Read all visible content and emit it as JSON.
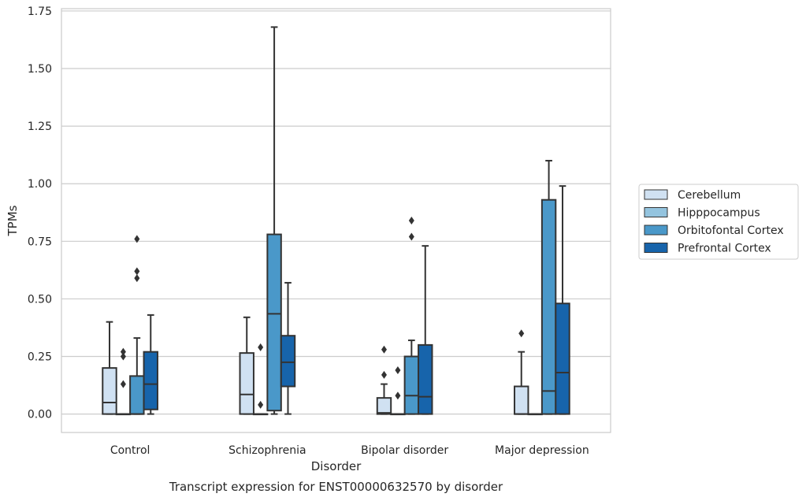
{
  "chart_data": {
    "type": "box",
    "xlabel": "Disorder",
    "ylabel": "TPMs",
    "caption": "Transcript expression for ENST00000632570 by disorder",
    "ylim": [
      -0.08,
      1.76
    ],
    "yticks": [
      "0.00",
      "0.25",
      "0.50",
      "0.75",
      "1.00",
      "1.25",
      "1.50",
      "1.75"
    ],
    "grid": "horizontal",
    "legend_position": "right",
    "categories": [
      "Control",
      "Schizophrenia",
      "Bipolar disorder",
      "Major depression"
    ],
    "series": [
      {
        "name": "Cerebellum",
        "color": "#d0e1f2",
        "boxes": [
          {
            "whislo": 0.0,
            "q1": 0.0,
            "med": 0.05,
            "q3": 0.2,
            "whishi": 0.4,
            "fliers": []
          },
          {
            "whislo": 0.0,
            "q1": 0.0,
            "med": 0.085,
            "q3": 0.265,
            "whishi": 0.42,
            "fliers": []
          },
          {
            "whislo": 0.0,
            "q1": 0.0,
            "med": 0.005,
            "q3": 0.07,
            "whishi": 0.13,
            "fliers": [
              0.17,
              0.28
            ]
          },
          {
            "whislo": 0.0,
            "q1": 0.0,
            "med": 0.0,
            "q3": 0.12,
            "whishi": 0.27,
            "fliers": [
              0.35
            ]
          }
        ]
      },
      {
        "name": "Hipppocampus",
        "color": "#94c4df",
        "boxes": [
          {
            "whislo": 0.0,
            "q1": 0.0,
            "med": 0.0,
            "q3": 0.0,
            "whishi": 0.0,
            "fliers": [
              0.13,
              0.25,
              0.27
            ]
          },
          {
            "whislo": 0.0,
            "q1": 0.0,
            "med": 0.0,
            "q3": 0.0,
            "whishi": 0.0,
            "fliers": [
              0.04,
              0.29
            ]
          },
          {
            "whislo": 0.0,
            "q1": 0.0,
            "med": 0.0,
            "q3": 0.0,
            "whishi": 0.0,
            "fliers": [
              0.08,
              0.19
            ]
          },
          {
            "whislo": 0.0,
            "q1": 0.0,
            "med": 0.0,
            "q3": 0.0,
            "whishi": 0.0,
            "fliers": []
          }
        ]
      },
      {
        "name": "Orbitofontal Cortex",
        "color": "#4a98c9",
        "boxes": [
          {
            "whislo": 0.0,
            "q1": 0.0,
            "med": 0.0,
            "q3": 0.165,
            "whishi": 0.33,
            "fliers": [
              0.59,
              0.62,
              0.76
            ]
          },
          {
            "whislo": 0.0,
            "q1": 0.015,
            "med": 0.435,
            "q3": 0.78,
            "whishi": 1.68,
            "fliers": []
          },
          {
            "whislo": 0.0,
            "q1": 0.0,
            "med": 0.08,
            "q3": 0.25,
            "whishi": 0.32,
            "fliers": [
              0.77,
              0.84
            ]
          },
          {
            "whislo": 0.0,
            "q1": 0.0,
            "med": 0.1,
            "q3": 0.93,
            "whishi": 1.1,
            "fliers": []
          }
        ]
      },
      {
        "name": "Prefrontal Cortex",
        "color": "#1764ab",
        "boxes": [
          {
            "whislo": 0.0,
            "q1": 0.02,
            "med": 0.13,
            "q3": 0.27,
            "whishi": 0.43,
            "fliers": []
          },
          {
            "whislo": 0.0,
            "q1": 0.12,
            "med": 0.225,
            "q3": 0.34,
            "whishi": 0.57,
            "fliers": []
          },
          {
            "whislo": 0.0,
            "q1": 0.0,
            "med": 0.075,
            "q3": 0.3,
            "whishi": 0.73,
            "fliers": []
          },
          {
            "whislo": 0.0,
            "q1": 0.0,
            "med": 0.18,
            "q3": 0.48,
            "whishi": 0.99,
            "fliers": []
          }
        ]
      }
    ]
  }
}
